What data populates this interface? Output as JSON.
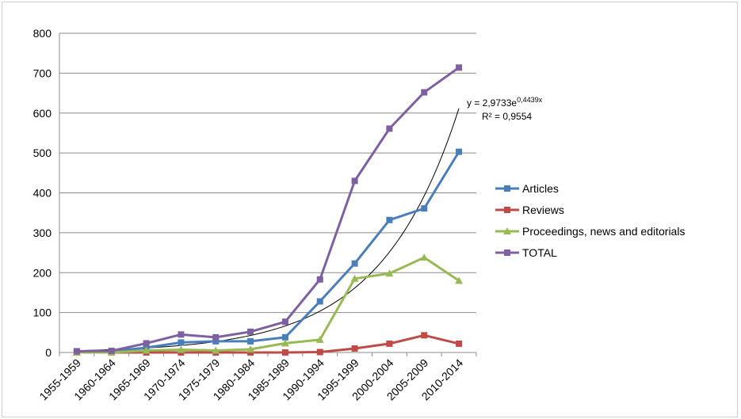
{
  "chart_data": {
    "type": "line",
    "title": "",
    "xlabel": "",
    "ylabel": "",
    "ylim": [
      0,
      800
    ],
    "yticks": [
      0,
      100,
      200,
      300,
      400,
      500,
      600,
      700,
      800
    ],
    "grid": "horizontal",
    "legend_position": "right",
    "categories": [
      "1955-1959",
      "1960-1964",
      "1965-1969",
      "1970-1974",
      "1975-1979",
      "1980-1984",
      "1985-1989",
      "1990-1994",
      "1995-1999",
      "2000-2004",
      "2005-2009",
      "2010-2014"
    ],
    "series": [
      {
        "name": "Articles",
        "color": "#4A7EBB",
        "marker": "square",
        "values": [
          2,
          3,
          12,
          25,
          28,
          28,
          38,
          128,
          223,
          332,
          361,
          503
        ]
      },
      {
        "name": "Reviews",
        "color": "#BE4B48",
        "marker": "square",
        "values": [
          0,
          0,
          0,
          0,
          0,
          0,
          0,
          1,
          10,
          22,
          43,
          22
        ]
      },
      {
        "name": "Proceedings, news and editorials",
        "color": "#98B954",
        "marker": "triangle",
        "values": [
          0,
          0,
          5,
          7,
          5,
          8,
          23,
          32,
          185,
          198,
          238,
          180
        ]
      },
      {
        "name": "TOTAL",
        "color": "#7D60A0",
        "marker": "square",
        "values": [
          3,
          4,
          23,
          45,
          38,
          52,
          77,
          183,
          430,
          561,
          652,
          714
        ]
      }
    ],
    "trendline": {
      "type": "exponential",
      "series": "TOTAL",
      "color": "#000000",
      "a": 2.9733,
      "b": 0.4439,
      "equation_prefix": "y = 2,9733e",
      "equation_exponent": "0,4439x",
      "r_squared_label": "R² = 0,9554"
    }
  }
}
